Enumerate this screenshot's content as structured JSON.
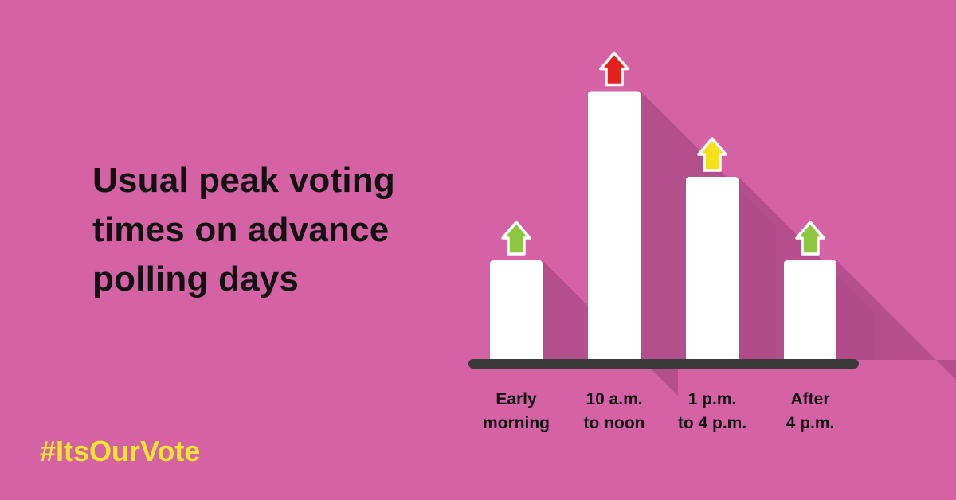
{
  "headline": "Usual peak voting times on advance polling days",
  "hashtag": "#ItsOurVote",
  "colors": {
    "background": "#d562a5",
    "shadow": "#b04d8b",
    "bar": "#ffffff",
    "baseline": "#3a3a3a",
    "headline_text": "#111111",
    "hashtag_text": "#f7e52b"
  },
  "chart_data": {
    "type": "bar",
    "categories": [
      [
        "Early",
        "morning"
      ],
      [
        "10 a.m.",
        "to noon"
      ],
      [
        "1 p.m.",
        "to 4 p.m."
      ],
      [
        "After",
        "4 p.m."
      ]
    ],
    "values": [
      1,
      2.7,
      1.84,
      1
    ],
    "ylim": [
      0,
      2.8
    ],
    "indicators": [
      {
        "icon": "up-arrow-icon",
        "color": "#8dc63f"
      },
      {
        "icon": "up-arrow-icon",
        "color": "#e2211c"
      },
      {
        "icon": "up-arrow-icon",
        "color": "#f4e11a"
      },
      {
        "icon": "up-arrow-icon",
        "color": "#8dc63f"
      }
    ],
    "grid": false,
    "legend": "none"
  }
}
